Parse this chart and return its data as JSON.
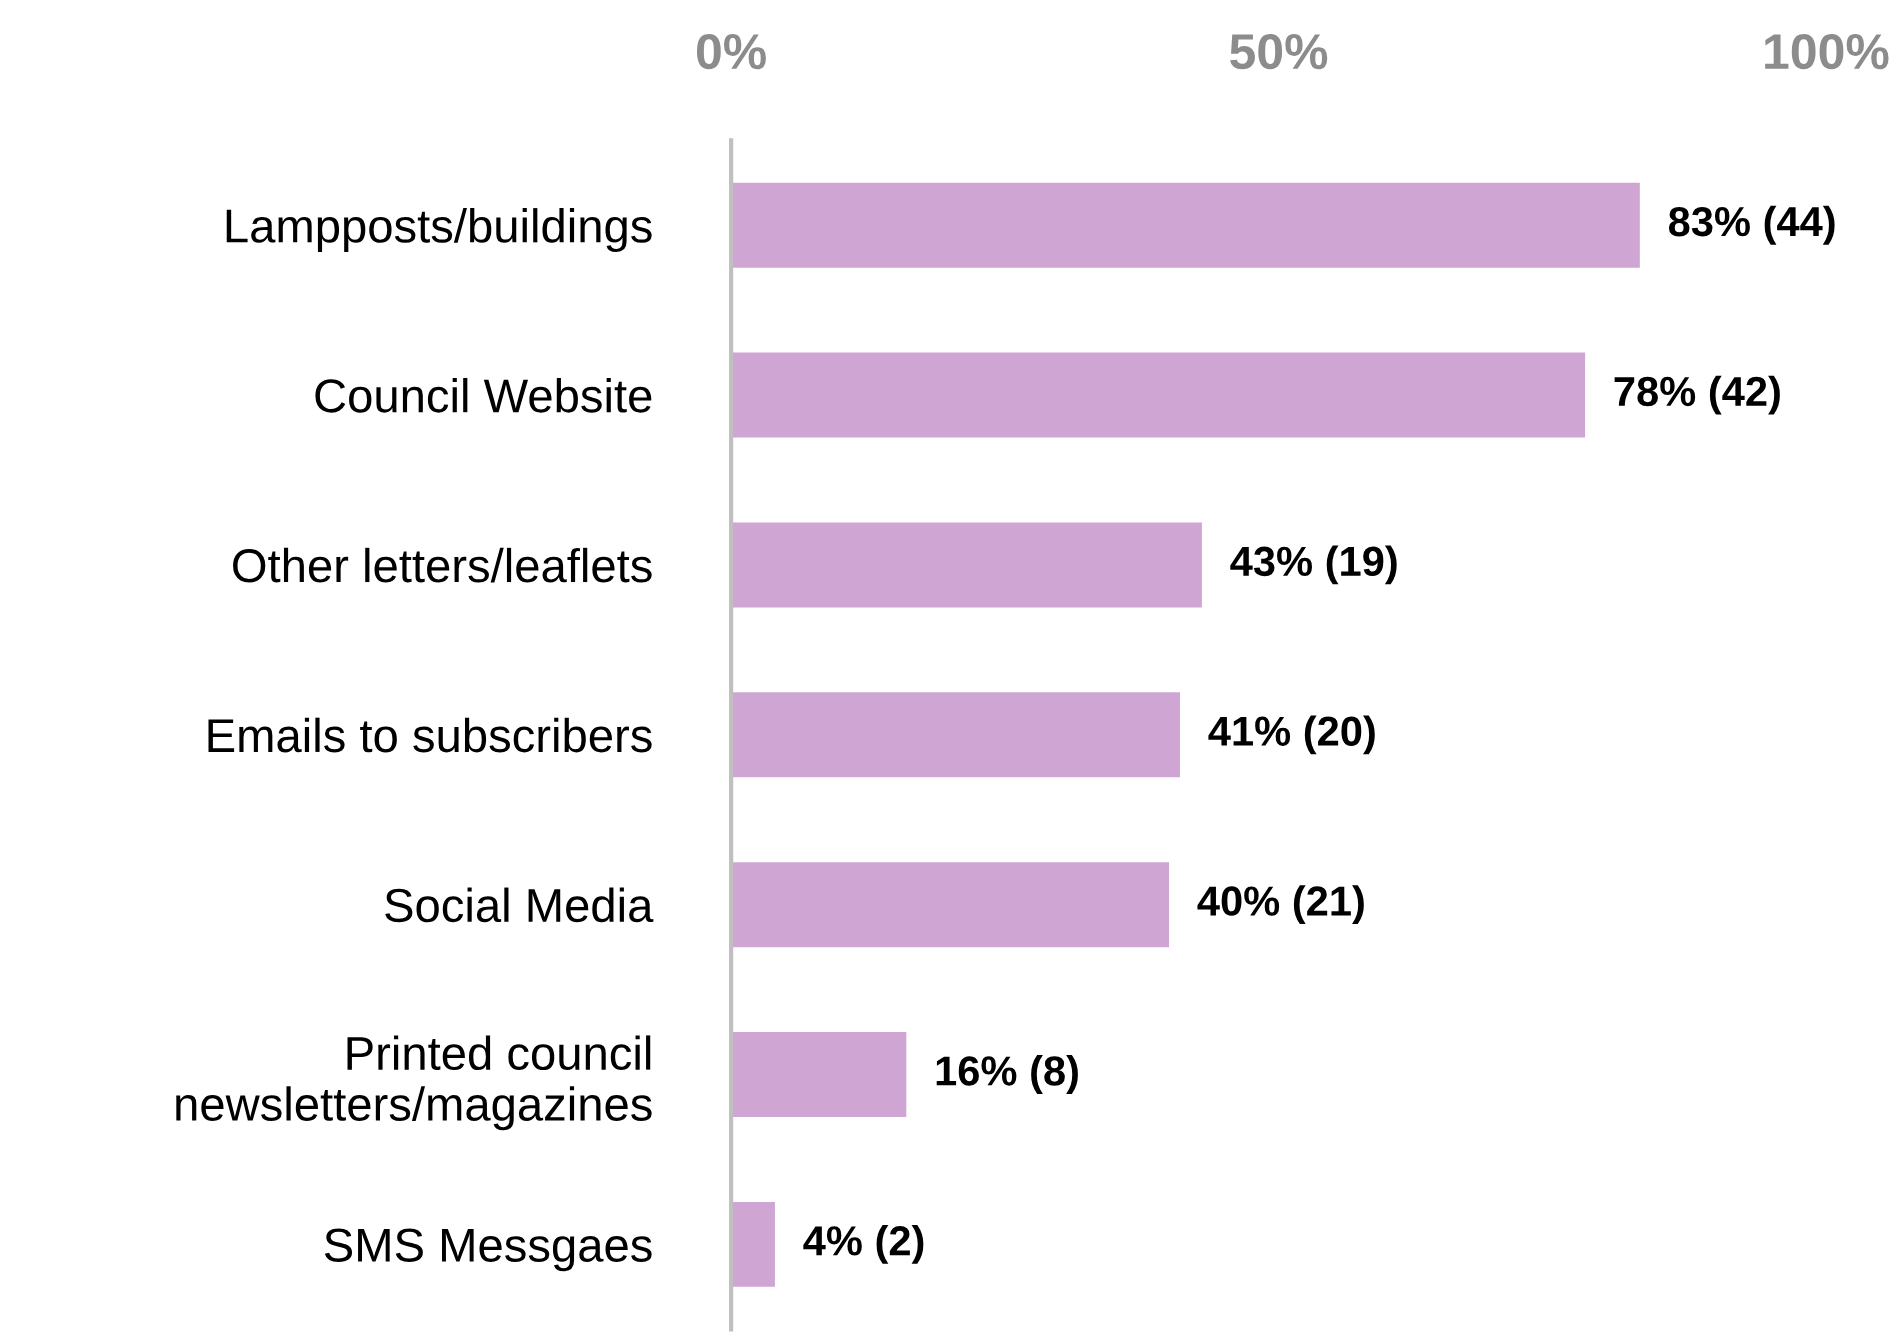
{
  "chart_data": {
    "type": "bar",
    "orientation": "horizontal",
    "categories": [
      "Lampposts/buildings",
      "Council Website",
      "Other letters/leaflets",
      "Emails to subscribers",
      "Social Media",
      "Printed council\nnewsletters/magazines",
      "SMS Messgaes"
    ],
    "values": [
      83,
      78,
      43,
      41,
      40,
      16,
      4
    ],
    "value_labels": [
      "83% (44)",
      "78% (42)",
      "43% (19)",
      "41% (20)",
      "40% (21)",
      "16% (8)",
      "4% (2)"
    ],
    "color": "#cfa5d3",
    "xlim": [
      0,
      100
    ],
    "xticks": [
      {
        "value": 0,
        "label": "0%"
      },
      {
        "value": 50,
        "label": "50%"
      },
      {
        "value": 100,
        "label": "100%"
      }
    ],
    "grid": false,
    "legend": false
  }
}
